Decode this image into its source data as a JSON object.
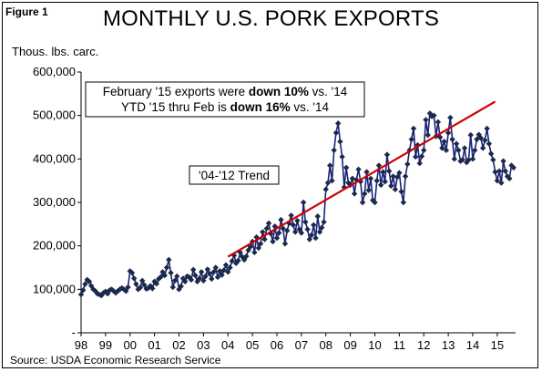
{
  "figure_label": "Figure 1",
  "source": "Source:  USDA Economic Research Service",
  "annotation": {
    "line1": {
      "pre": "February '15 exports  were ",
      "bold": "down 10%",
      "post": " vs. '14"
    },
    "line2": {
      "pre": "YTD '15 thru Feb is ",
      "bold": "down 16%",
      "post": " vs. '14"
    }
  },
  "chart_data": {
    "type": "line",
    "title": "MONTHLY U.S. PORK EXPORTS",
    "ylabel": "Thous. lbs. carc.",
    "xlabel": "",
    "ylim": [
      0,
      600000
    ],
    "yticks": [
      0,
      100000,
      200000,
      300000,
      400000,
      500000,
      600000
    ],
    "ytick_labels": [
      "-",
      "100,000",
      "200,000",
      "300,000",
      "400,000",
      "500,000",
      "600,000"
    ],
    "xtick_labels": [
      "98",
      "99",
      "00",
      "01",
      "02",
      "03",
      "04",
      "05",
      "06",
      "07",
      "08",
      "09",
      "10",
      "11",
      "12",
      "13",
      "14",
      "15"
    ],
    "grid": false,
    "series": [
      {
        "color": "#1a237e",
        "marker_color": "#1b2a4a",
        "x_start": "1998-01",
        "values": [
          88000,
          98000,
          112000,
          122000,
          118000,
          108000,
          100000,
          96000,
          90000,
          88000,
          86000,
          92000,
          95000,
          90000,
          98000,
          100000,
          96000,
          92000,
          96000,
          100000,
          103000,
          100000,
          96000,
          105000,
          142000,
          138000,
          125000,
          112000,
          100000,
          104000,
          120000,
          110000,
          101000,
          103000,
          108000,
          102000,
          118000,
          113000,
          124000,
          128000,
          140000,
          132000,
          150000,
          168000,
          138000,
          105000,
          120000,
          130000,
          100000,
          107000,
          125000,
          118000,
          130000,
          128000,
          122000,
          145000,
          132000,
          118000,
          125000,
          140000,
          120000,
          130000,
          146000,
          136000,
          124000,
          140000,
          150000,
          128000,
          142000,
          133000,
          144000,
          156000,
          140000,
          150000,
          165000,
          178000,
          160000,
          166000,
          185000,
          175000,
          168000,
          176000,
          190000,
          198000,
          210000,
          185000,
          220000,
          195000,
          205000,
          232000,
          215000,
          240000,
          252000,
          228000,
          210000,
          245000,
          218000,
          230000,
          260000,
          240000,
          205000,
          235000,
          252000,
          270000,
          248000,
          232000,
          258000,
          238000,
          230000,
          300000,
          255000,
          238000,
          215000,
          225000,
          248000,
          218000,
          268000,
          232000,
          242000,
          255000,
          330000,
          345000,
          385000,
          350000,
          420000,
          460000,
          482000,
          440000,
          405000,
          335000,
          380000,
          345000,
          340000,
          355000,
          320000,
          352000,
          376000,
          348000,
          300000,
          320000,
          370000,
          328000,
          355000,
          305000,
          300000,
          350000,
          385000,
          340000,
          370000,
          348000,
          410000,
          372000,
          338000,
          360000,
          330000,
          358000,
          368000,
          325000,
          300000,
          360000,
          388000,
          420000,
          445000,
          470000,
          405000,
          432000,
          390000,
          406000,
          420000,
          490000,
          455000,
          505000,
          498000,
          500000,
          452000,
          485000,
          450000,
          425000,
          440000,
          420000,
          460000,
          495000,
          445000,
          400000,
          435000,
          420000,
          395000,
          398000,
          425000,
          392000,
          398000,
          455000,
          400000,
          420000,
          445000,
          456000,
          448000,
          425000,
          443000,
          470000,
          435000,
          412000,
          398000,
          370000,
          350000,
          372000,
          345000,
          395000,
          372000,
          360000,
          355000,
          385000,
          380000
        ]
      },
      {
        "name": "'04-'12 Trend",
        "color": "#cc0000",
        "x": [
          "2004-01",
          "2014-12"
        ],
        "values": [
          175000,
          532000
        ]
      }
    ]
  }
}
